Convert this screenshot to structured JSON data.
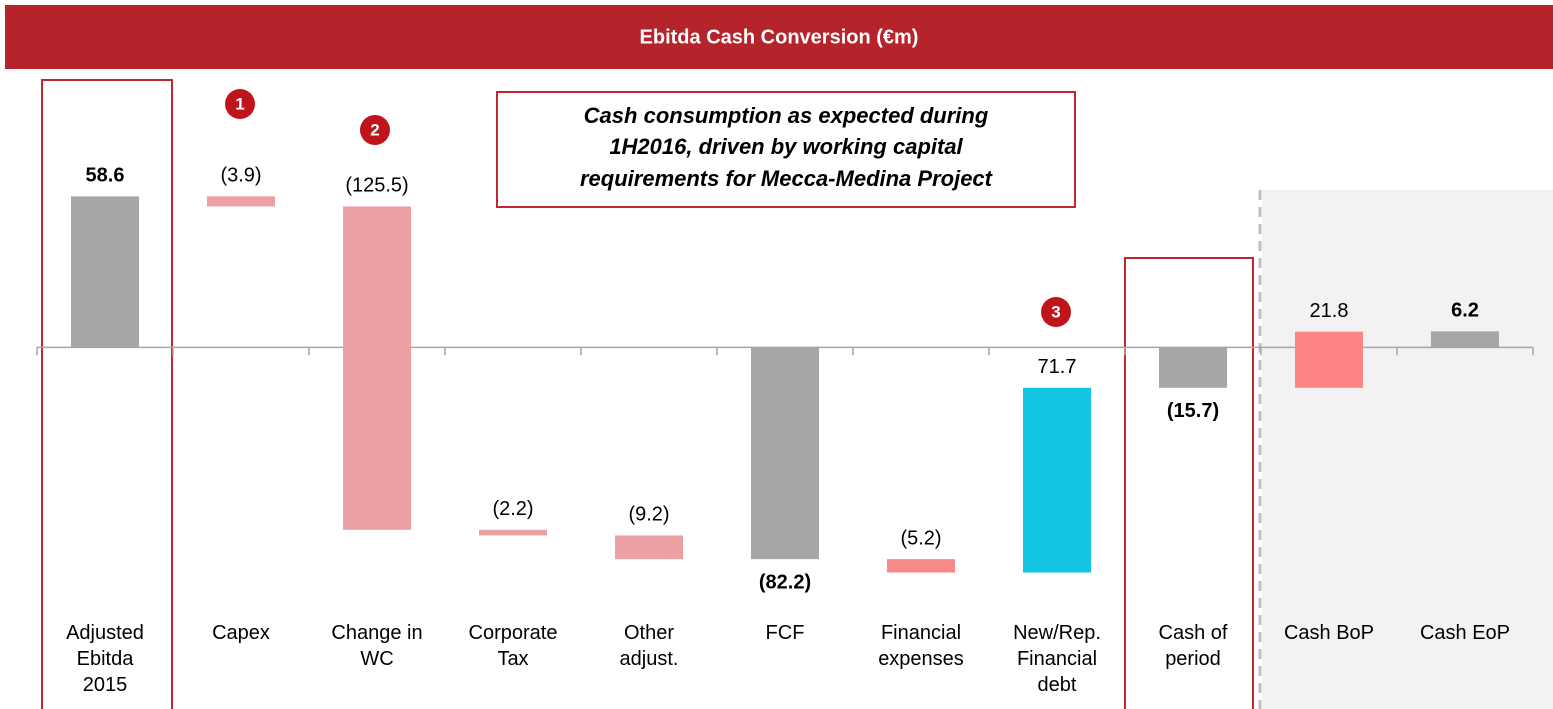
{
  "chart_data": {
    "type": "waterfall",
    "title": "Ebitda Cash Conversion (€m)",
    "annotation": [
      "Cash consumption as expected during",
      "1H2016, driven by working capital",
      "requirements for Mecca-Medina Project"
    ],
    "markers": [
      "1",
      "2",
      "3"
    ],
    "categories": [
      [
        "Adjusted",
        "Ebitda",
        "2015"
      ],
      [
        "Capex"
      ],
      [
        "Change in",
        "WC"
      ],
      [
        "Corporate",
        "Tax"
      ],
      [
        "Other",
        "adjust."
      ],
      [
        "FCF"
      ],
      [
        "Financial",
        "expenses"
      ],
      [
        "New/Rep.",
        "Financial",
        "debt"
      ],
      [
        "Cash of",
        "period"
      ],
      [
        "Cash BoP"
      ],
      [
        "Cash EoP"
      ]
    ],
    "values": [
      58.6,
      -3.9,
      -125.5,
      -2.2,
      -9.2,
      -82.2,
      -5.2,
      71.7,
      -15.7,
      21.8,
      6.2
    ],
    "value_labels": [
      "58.6",
      "(3.9)",
      "(125.5)",
      "(2.2)",
      "(9.2)",
      "(82.2)",
      "(5.2)",
      "71.7",
      "(15.7)",
      "21.8",
      "6.2"
    ],
    "measure": [
      "absolute",
      "relative",
      "relative",
      "relative",
      "relative",
      "total",
      "relative",
      "relative",
      "total",
      "relative",
      "total"
    ],
    "colors": [
      "#a6a6a6",
      "#eca0a4",
      "#eca0a4",
      "#eca0a4",
      "#eca0a4",
      "#a6a6a6",
      "#f68a8a",
      "#12c5e2",
      "#a6a6a6",
      "#ff8585",
      "#a6a6a6"
    ],
    "ylim": [
      -100,
      70
    ]
  }
}
